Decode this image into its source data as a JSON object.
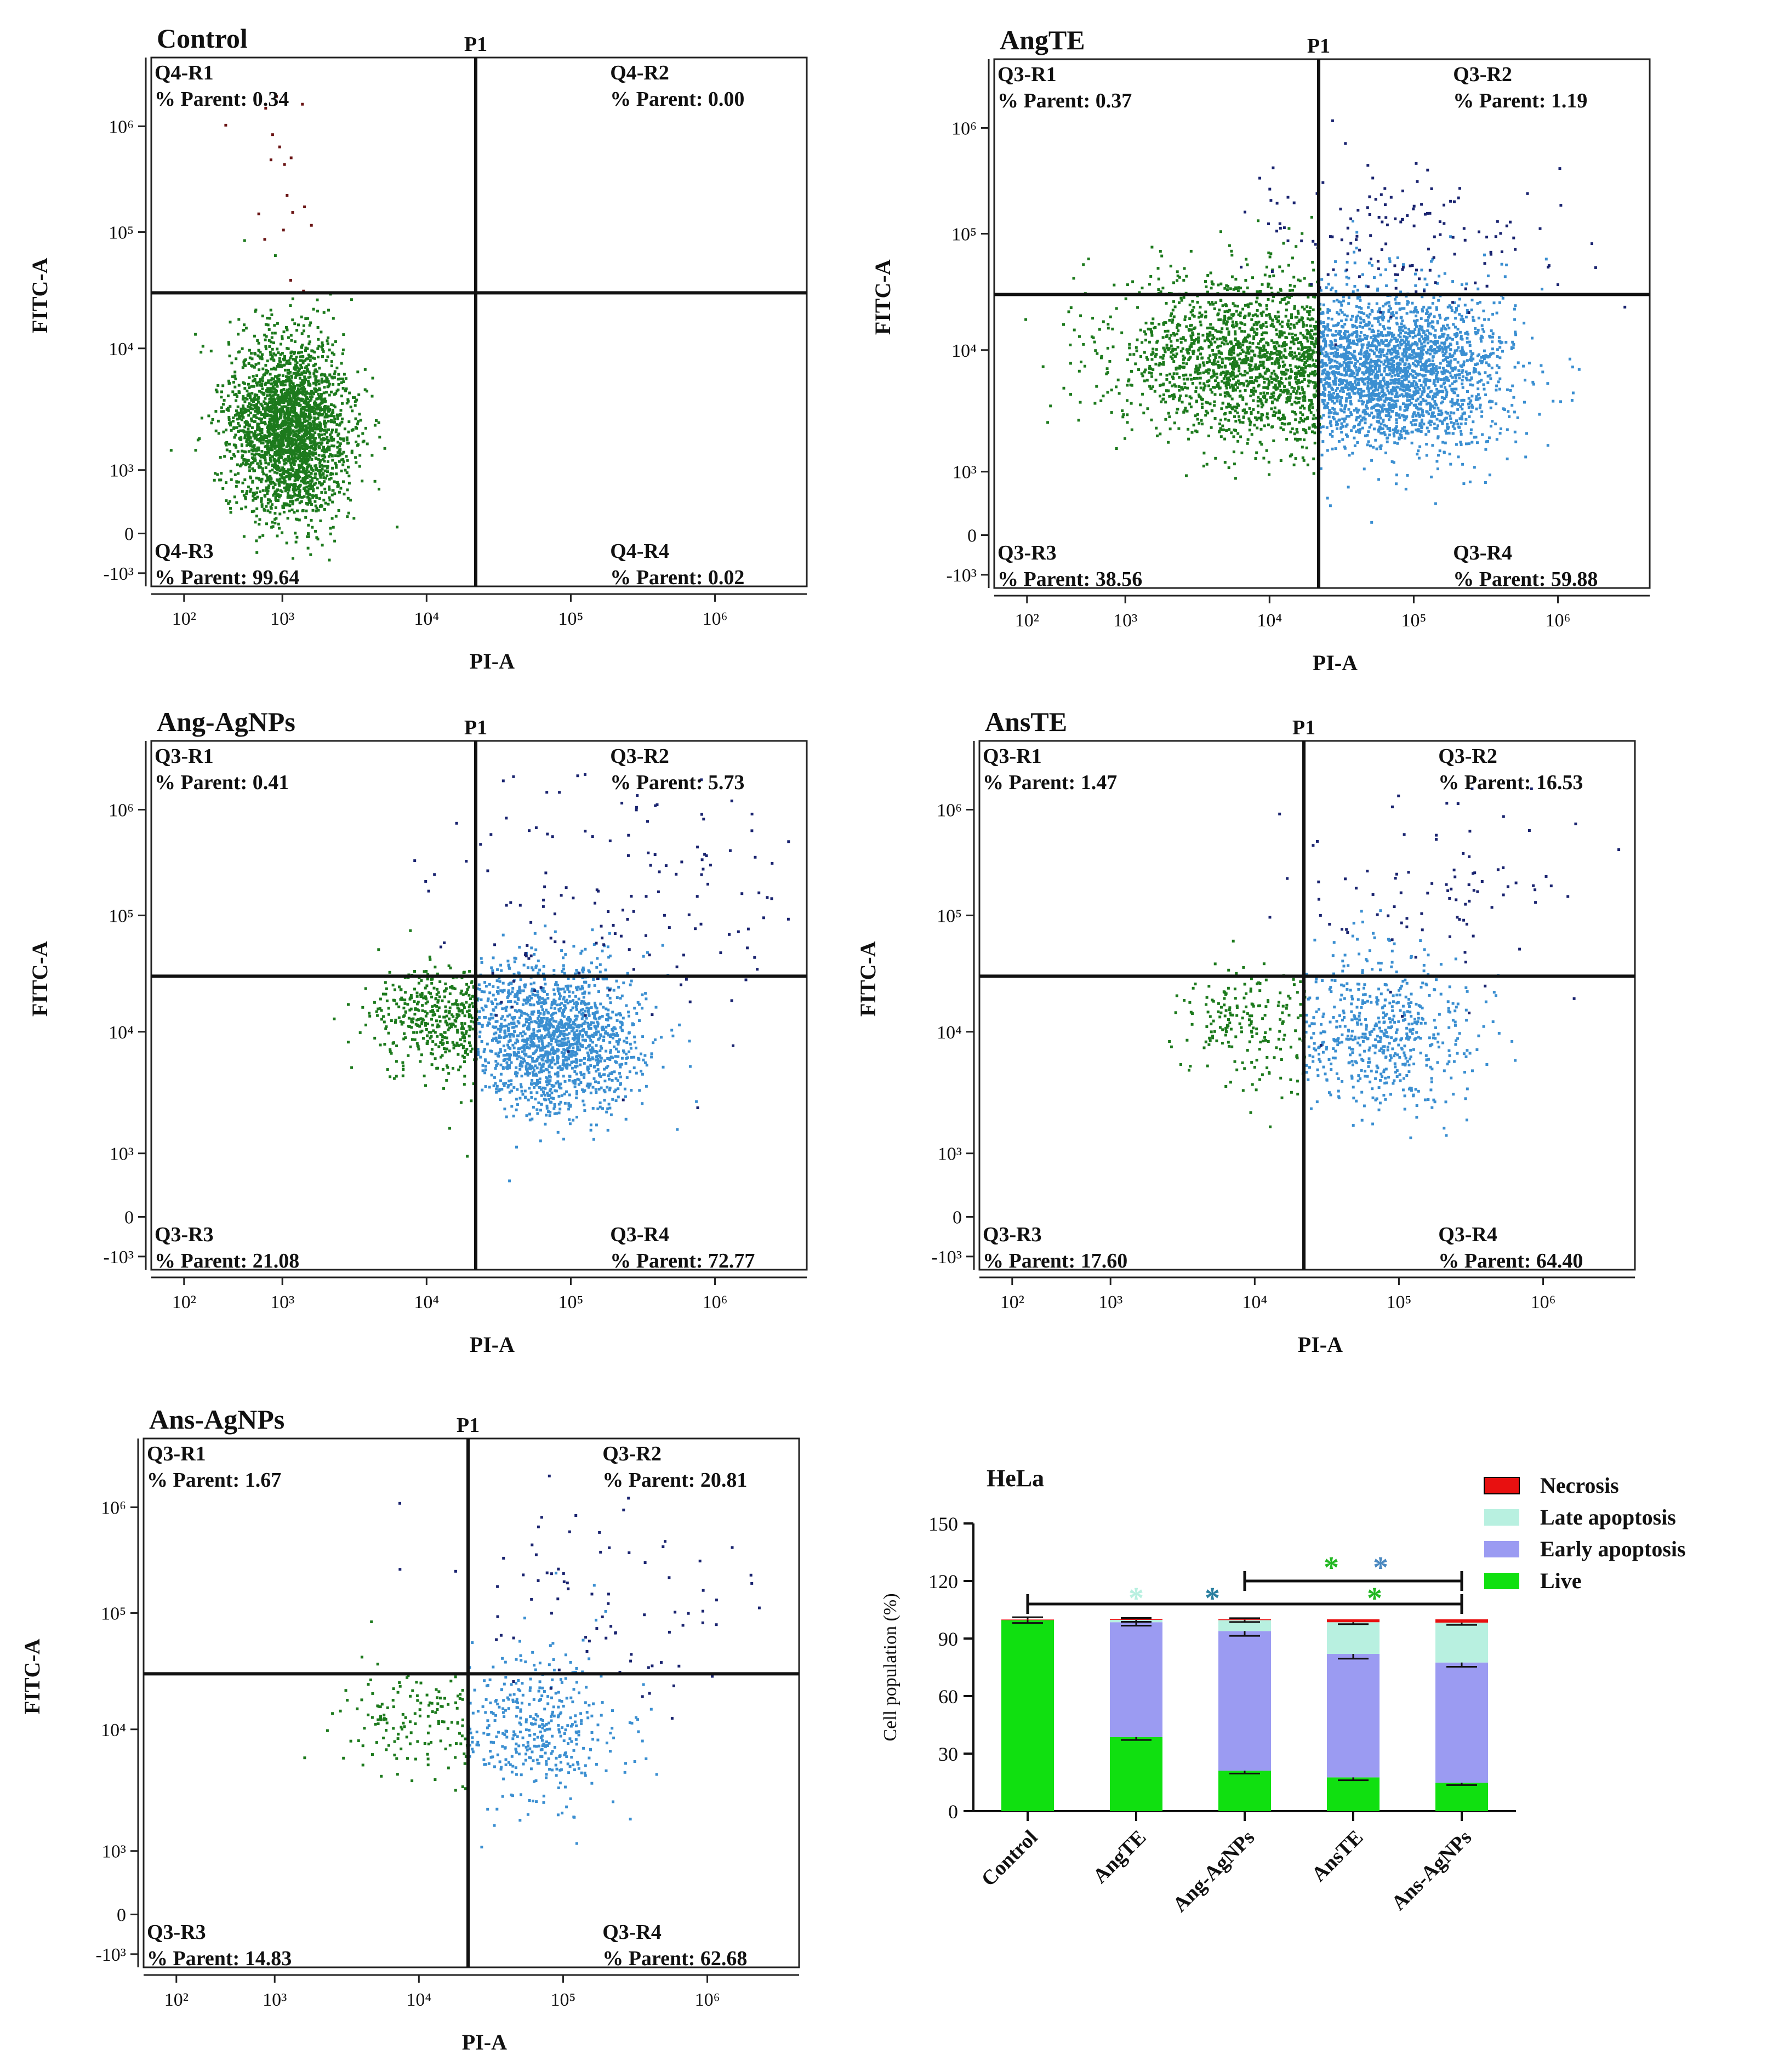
{
  "chart_data": [
    {
      "type": "scatter",
      "title": "Control",
      "gate_label": "P1",
      "xlabel": "PI-A",
      "ylabel": "FITC-A",
      "x_ticks": [
        "10²",
        "10³",
        "10⁴",
        "10⁵",
        "10⁶"
      ],
      "y_ticks": [
        "10⁶",
        "10⁵",
        "10⁴",
        "10³",
        "0",
        "-10³"
      ],
      "quadrants": [
        {
          "name": "Q4-R1",
          "text": "% Parent: 0.34",
          "value": 0.34
        },
        {
          "name": "Q4-R2",
          "text": "% Parent: 0.00",
          "value": 0.0
        },
        {
          "name": "Q4-R3",
          "text": "% Parent: 99.64",
          "value": 99.64
        },
        {
          "name": "Q4-R4",
          "text": "% Parent: 0.02",
          "value": 0.02
        }
      ]
    },
    {
      "type": "scatter",
      "title": "AngTE",
      "gate_label": "P1",
      "xlabel": "PI-A",
      "ylabel": "FITC-A",
      "x_ticks": [
        "10²",
        "10³",
        "10⁴",
        "10⁵",
        "10⁶"
      ],
      "y_ticks": [
        "10⁶",
        "10⁵",
        "10⁴",
        "10³",
        "0",
        "-10³"
      ],
      "quadrants": [
        {
          "name": "Q3-R1",
          "text": "% Parent: 0.37",
          "value": 0.37
        },
        {
          "name": "Q3-R2",
          "text": "% Parent: 1.19",
          "value": 1.19
        },
        {
          "name": "Q3-R3",
          "text": "% Parent: 38.56",
          "value": 38.56
        },
        {
          "name": "Q3-R4",
          "text": "% Parent: 59.88",
          "value": 59.88
        }
      ]
    },
    {
      "type": "scatter",
      "title": "Ang-AgNPs",
      "gate_label": "P1",
      "xlabel": "PI-A",
      "ylabel": "FITC-A",
      "x_ticks": [
        "10²",
        "10³",
        "10⁴",
        "10⁵",
        "10⁶"
      ],
      "y_ticks": [
        "10⁶",
        "10⁵",
        "10⁴",
        "10³",
        "0",
        "-10³"
      ],
      "quadrants": [
        {
          "name": "Q3-R1",
          "text": "% Parent: 0.41",
          "value": 0.41
        },
        {
          "name": "Q3-R2",
          "text": "% Parent: 5.73",
          "value": 5.73
        },
        {
          "name": "Q3-R3",
          "text": "% Parent: 21.08",
          "value": 21.08
        },
        {
          "name": "Q3-R4",
          "text": "% Parent: 72.77",
          "value": 72.77
        }
      ]
    },
    {
      "type": "scatter",
      "title": "AnsTE",
      "gate_label": "P1",
      "xlabel": "PI-A",
      "ylabel": "FITC-A",
      "x_ticks": [
        "10²",
        "10³",
        "10⁴",
        "10⁵",
        "10⁶"
      ],
      "y_ticks": [
        "10⁶",
        "10⁵",
        "10⁴",
        "10³",
        "0",
        "-10³"
      ],
      "quadrants": [
        {
          "name": "Q3-R1",
          "text": "% Parent: 1.47",
          "value": 1.47
        },
        {
          "name": "Q3-R2",
          "text": "% Parent: 16.53",
          "value": 16.53
        },
        {
          "name": "Q3-R3",
          "text": "% Parent: 17.60",
          "value": 17.6
        },
        {
          "name": "Q3-R4",
          "text": "% Parent: 64.40",
          "value": 64.4
        }
      ]
    },
    {
      "type": "scatter",
      "title": "Ans-AgNPs",
      "gate_label": "P1",
      "xlabel": "PI-A",
      "ylabel": "FITC-A",
      "x_ticks": [
        "10²",
        "10³",
        "10⁴",
        "10⁵",
        "10⁶"
      ],
      "y_ticks": [
        "10⁶",
        "10⁵",
        "10⁴",
        "10³",
        "0",
        "-10³"
      ],
      "quadrants": [
        {
          "name": "Q3-R1",
          "text": "% Parent: 1.67",
          "value": 1.67
        },
        {
          "name": "Q3-R2",
          "text": "% Parent: 20.81",
          "value": 20.81
        },
        {
          "name": "Q3-R3",
          "text": "% Parent: 14.83",
          "value": 14.83
        },
        {
          "name": "Q3-R4",
          "text": "% Parent: 62.68",
          "value": 62.68
        }
      ]
    },
    {
      "type": "bar",
      "stacked": true,
      "title": "HeLa",
      "ylabel": "Cell population (%)",
      "ylim": [
        0,
        150
      ],
      "y_ticks": [
        "0",
        "30",
        "60",
        "90",
        "120",
        "150"
      ],
      "categories": [
        "Control",
        "AngTE",
        "Ang-AgNPs",
        "AnsTE",
        "Ans-AgNPs"
      ],
      "series": [
        {
          "name": "Live",
          "color": "#10e010",
          "values": [
            99.6,
            38.6,
            21.1,
            17.6,
            14.8
          ],
          "errors": [
            1.5,
            1.5,
            1.5,
            1.5,
            1.2
          ]
        },
        {
          "name": "Early apoptosis",
          "color": "#9b9bf2",
          "values": [
            0.0,
            59.9,
            72.8,
            64.4,
            62.7
          ],
          "errors": [
            0,
            1.8,
            2.5,
            2.5,
            2.2
          ]
        },
        {
          "name": "Late apoptosis",
          "color": "#b8f0e0",
          "values": [
            0.0,
            1.2,
            5.7,
            16.5,
            20.8
          ],
          "errors": [
            0,
            1.0,
            1.0,
            1.0,
            1.2
          ]
        },
        {
          "name": "Necrosis",
          "color": "#e81010",
          "values": [
            0.3,
            0.4,
            0.4,
            1.5,
            1.7
          ],
          "errors": [
            0,
            0,
            0,
            0,
            0
          ]
        }
      ],
      "legend": [
        "Necrosis",
        "Late apoptosis",
        "Early apoptosis",
        "Live"
      ],
      "significance": {
        "symbol": "*",
        "lower_bracket_colors": [
          "#b8f0e0",
          "#2a7fa0",
          "#22b822"
        ],
        "upper_bracket_colors": [
          "#22b822",
          "#4a88c0"
        ]
      }
    }
  ]
}
